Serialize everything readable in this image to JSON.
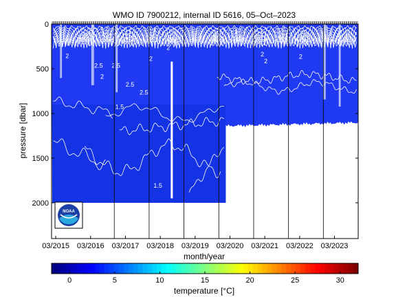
{
  "chart_data": {
    "type": "heatmap",
    "title": "WMO ID 7900212, internal ID 5616, 05–Oct–2023",
    "xlabel": "month/year",
    "ylabel": "pressure [dbar]",
    "colorbar_label": "temperature [°C]",
    "x_tick_labels": [
      "03/2015",
      "03/2016",
      "03/2017",
      "03/2018",
      "03/2019",
      "03/2020",
      "03/2021",
      "03/2022",
      "03/2023"
    ],
    "x_ticks_year": [
      2015.17,
      2016.17,
      2017.17,
      2018.17,
      2019.17,
      2020.17,
      2021.17,
      2022.17,
      2023.17
    ],
    "xlim": [
      2015.05,
      2023.85
    ],
    "y_ticks": [
      0,
      500,
      1000,
      1500,
      2000
    ],
    "ylim": [
      2400,
      0
    ],
    "y_reversed": true,
    "colorbar_ticks": [
      0,
      5,
      10,
      15,
      20,
      25,
      30
    ],
    "colorbar_range": [
      -2,
      32
    ],
    "colormap": "jet",
    "profile_max_depth": [
      {
        "x": 2015.07,
        "depth": 2000
      },
      {
        "x": 2018.55,
        "depth": 2000
      },
      {
        "x": 2020.05,
        "depth": 2000
      },
      {
        "x": 2020.07,
        "depth": 1130
      },
      {
        "x": 2023.85,
        "depth": 1100
      }
    ],
    "gap": {
      "x": 2018.47,
      "x_end": 2018.52,
      "depth_from": 420,
      "depth_to": 1950
    },
    "contour_labels": [
      "2",
      "2.5",
      "2",
      "2.5",
      "2.5",
      "2",
      "2",
      "2.5",
      "2",
      "2",
      "2",
      "1.5",
      "1.5"
    ],
    "sample_vertical_lines_year": [
      2016.85,
      2017.85,
      2018.85,
      2019.85,
      2020.85,
      2021.85,
      2022.85
    ]
  },
  "logo": {
    "text": "NOAA"
  },
  "colors": {
    "field_deep": "#0a2ed8",
    "field_mid": "#1f3af2",
    "contour": "#ffffff",
    "frame": "#000000"
  }
}
